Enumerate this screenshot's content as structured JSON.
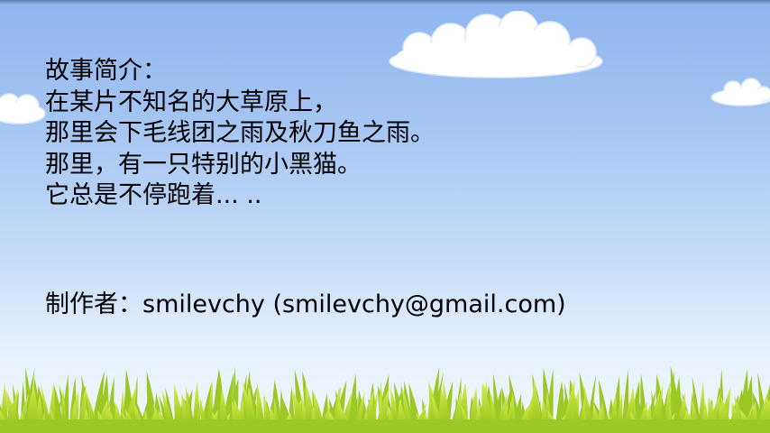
{
  "story": {
    "heading": "故事简介：",
    "lines": [
      "在某片不知名的大草原上，",
      "那里会下毛线团之雨及秋刀鱼之雨。",
      "那里，有一只特别的小黑猫。",
      "它总是不停跑着... .."
    ]
  },
  "credit": "制作者：smilevchy (smilevchy@gmail.com)",
  "colors": {
    "sky_top": "#8fb6ef",
    "sky_bottom": "#f2f7fe",
    "grass_light": "#c8e23c",
    "grass_dark": "#7fae16",
    "text": "#000000"
  },
  "icons": [
    "cloud",
    "grass"
  ]
}
